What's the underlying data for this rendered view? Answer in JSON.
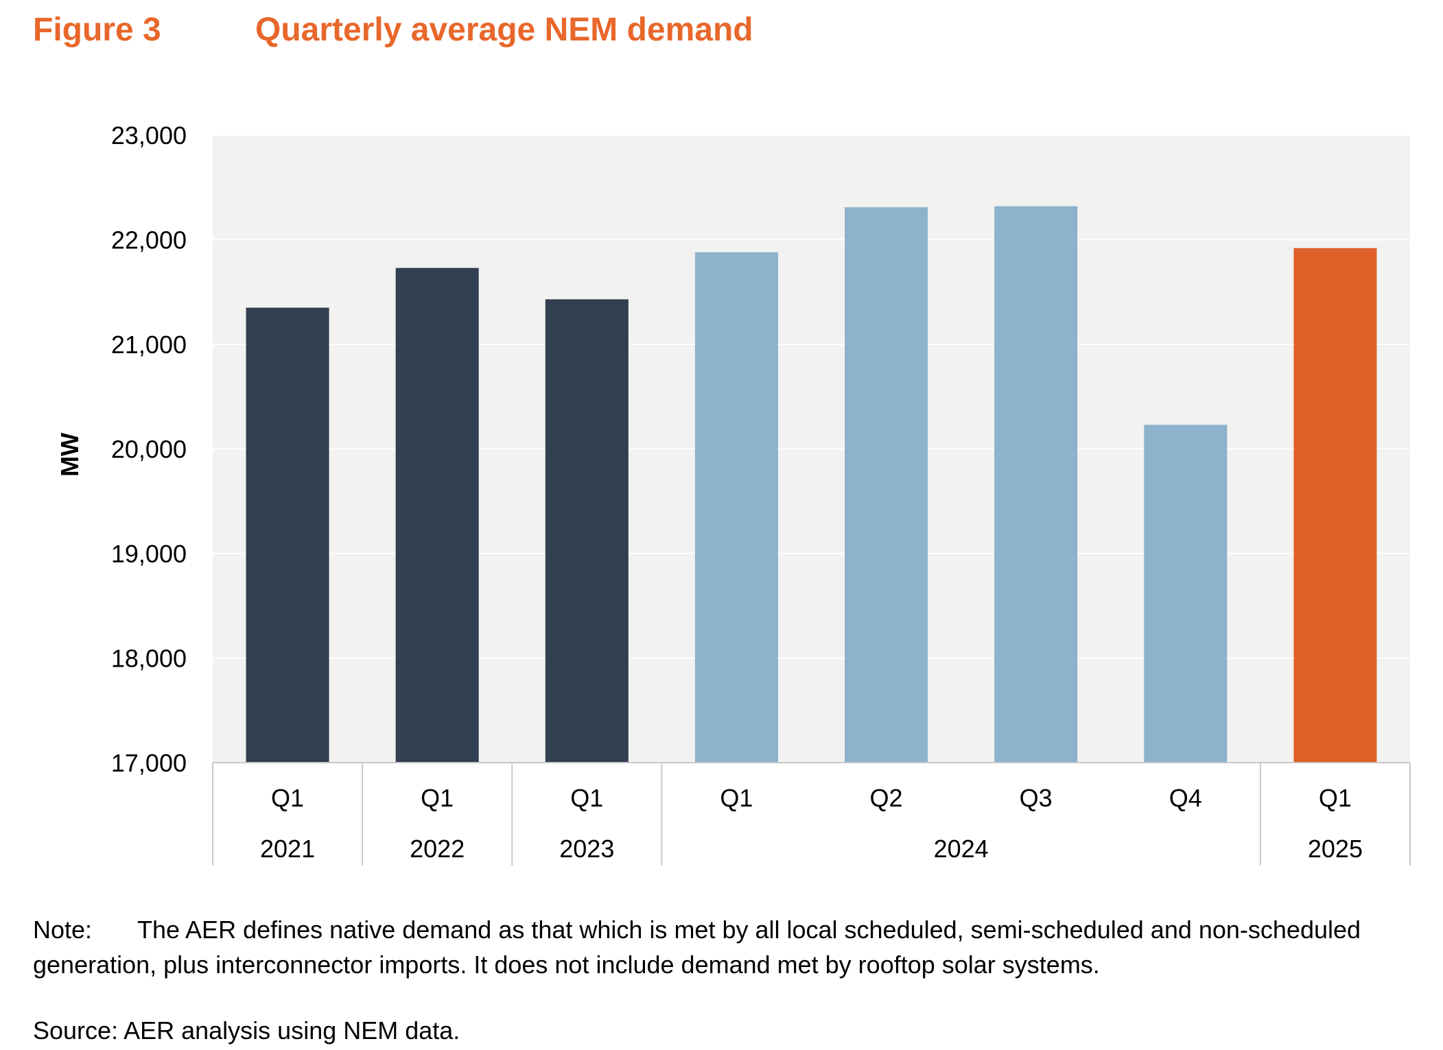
{
  "figure": {
    "number": "Figure 3",
    "title": "Quarterly average NEM demand"
  },
  "chart_data": {
    "type": "bar",
    "title": "Quarterly average NEM demand",
    "xlabel": "",
    "ylabel": "MW",
    "ylim": [
      17000,
      23000
    ],
    "yticks": [
      17000,
      18000,
      19000,
      20000,
      21000,
      22000,
      23000
    ],
    "ytick_labels": [
      "17,000",
      "18,000",
      "19,000",
      "20,000",
      "21,000",
      "22,000",
      "23,000"
    ],
    "grid": true,
    "plot_background": "#F2F2F1",
    "categories": [
      "Q1",
      "Q1",
      "Q1",
      "Q1",
      "Q2",
      "Q3",
      "Q4",
      "Q1"
    ],
    "groups": [
      {
        "label": "2021",
        "count": 1
      },
      {
        "label": "2022",
        "count": 1
      },
      {
        "label": "2023",
        "count": 1
      },
      {
        "label": "2024",
        "count": 4
      },
      {
        "label": "2025",
        "count": 1
      }
    ],
    "values": [
      21350,
      21730,
      21430,
      21880,
      22310,
      22320,
      20230,
      21920
    ],
    "bar_colors": [
      "#323F51",
      "#323F51",
      "#323F51",
      "#8CB2CC",
      "#8CB2CC",
      "#8CB2CC",
      "#8CB2CC",
      "#E0602A"
    ]
  },
  "note": {
    "label": "Note:",
    "text": "The AER defines native demand as that which is met by all local scheduled, semi-scheduled and non-scheduled generation, plus interconnector imports. It does not include demand met by rooftop solar systems."
  },
  "source": "Source: AER analysis using NEM data."
}
